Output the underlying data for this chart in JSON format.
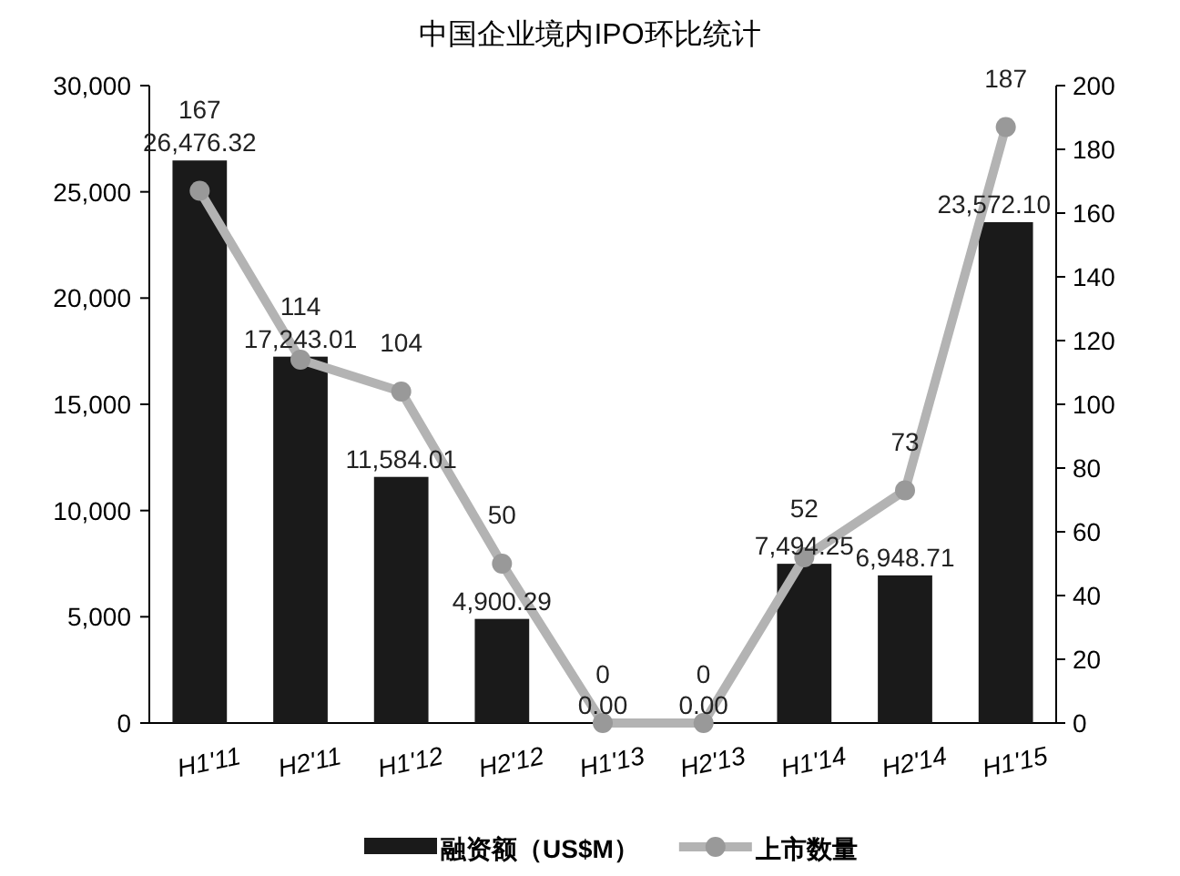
{
  "chart_data": {
    "type": "bar",
    "title": "中国企业境内IPO环比统计",
    "categories": [
      "H1'11",
      "H2'11",
      "H1'12",
      "H2'12",
      "H1'13",
      "H2'13",
      "H1'14",
      "H2'14",
      "H1'15"
    ],
    "series": [
      {
        "name": "融资额（US$M）",
        "color": "#1a1a1a",
        "values": [
          26476.32,
          17243.01,
          11584.01,
          4900.29,
          0.0,
          0.0,
          7494.25,
          6948.71,
          23572.1
        ],
        "value_labels": [
          "26,476.32",
          "17,243.01",
          "11,584.01",
          "4,900.29",
          "0.00",
          "0.00",
          "7,494.25",
          "6,948.71",
          "23,572.10"
        ]
      },
      {
        "name": "上市数量",
        "type": "line",
        "axis": "y2",
        "color": "#b3b3b3",
        "marker": "circle",
        "values": [
          167,
          114,
          104,
          50,
          0,
          0,
          52,
          73,
          187
        ],
        "value_labels": [
          "167",
          "114",
          "104",
          "50",
          "0",
          "0",
          "52",
          "73",
          "187"
        ]
      }
    ],
    "ylim": [
      0,
      30000
    ],
    "yticks": [
      0,
      {
        "value": 5000,
        "label": "5,000"
      },
      {
        "value": 10000,
        "label": "10,000"
      },
      {
        "value": 15000,
        "label": "15,000"
      },
      {
        "value": 20000,
        "label": "20,000"
      },
      {
        "value": 25000,
        "label": "25,000"
      },
      {
        "value": 30000,
        "label": "30,000"
      }
    ],
    "y2lim": [
      0,
      200
    ],
    "y2ticks": [
      0,
      20,
      40,
      60,
      80,
      100,
      120,
      140,
      160,
      180,
      200
    ],
    "legend": "bottom"
  }
}
